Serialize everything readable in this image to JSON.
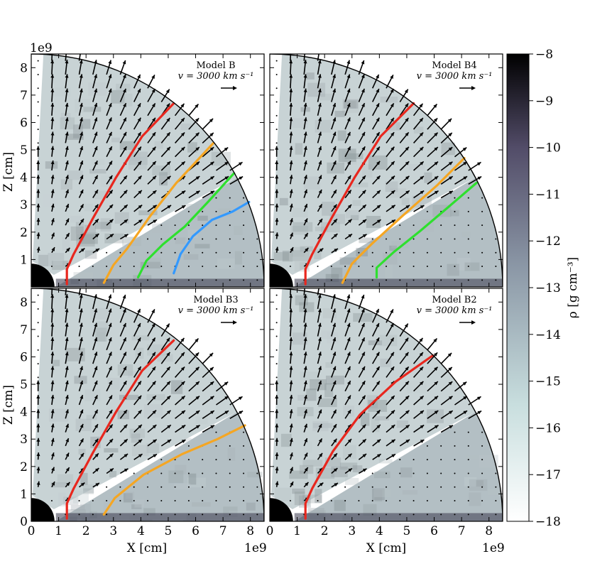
{
  "chart_data": {
    "type": "vector-field-density-map",
    "shared": {
      "x_tick_labels": [
        "0",
        "1",
        "2",
        "3",
        "4",
        "5",
        "6",
        "7",
        "8"
      ],
      "y_tick_labels": [
        "0",
        "1",
        "2",
        "3",
        "4",
        "5",
        "6",
        "7",
        "8"
      ],
      "xlabel": "X [cm]",
      "ylabel": "Z [cm]",
      "offset_label": "1e9",
      "xlim": [
        0,
        8.5
      ],
      "ylim": [
        0,
        8.5
      ],
      "outer_radius": 8.5,
      "star_radius": 0.85,
      "wind_cone_angle_deg": [
        28,
        87
      ],
      "reference_vector": "v = 3000 km s⁻¹"
    },
    "colorbar": {
      "label": "ρ [g cm⁻³]",
      "range": [
        -18,
        -8
      ],
      "tick_labels": [
        "−8",
        "−9",
        "−10",
        "−11",
        "−12",
        "−13",
        "−14",
        "−15",
        "−16",
        "−17",
        "−18"
      ],
      "colors": [
        "#ffffff",
        "#c8dede",
        "#8a96a5",
        "#524c68",
        "#000000"
      ]
    },
    "panels": [
      {
        "title": "Model B",
        "streamlines": [
          {
            "color": "#e8271e",
            "points": [
              [
                1.3,
                0.1
              ],
              [
                1.3,
                0.65
              ],
              [
                1.55,
                1.2
              ],
              [
                2.25,
                2.5
              ],
              [
                3.1,
                4.0
              ],
              [
                4.05,
                5.5
              ],
              [
                5.2,
                6.7
              ]
            ]
          },
          {
            "color": "#f5a623",
            "points": [
              [
                2.65,
                0.15
              ],
              [
                3.0,
                0.8
              ],
              [
                3.5,
                1.4
              ],
              [
                4.35,
                2.6
              ],
              [
                5.3,
                3.8
              ],
              [
                6.65,
                5.25
              ]
            ]
          },
          {
            "color": "#2ee02e",
            "points": [
              [
                3.9,
                0.35
              ],
              [
                4.2,
                0.95
              ],
              [
                4.8,
                1.55
              ],
              [
                5.6,
                2.2
              ],
              [
                6.45,
                3.1
              ],
              [
                7.4,
                4.15
              ]
            ]
          },
          {
            "color": "#3399ff",
            "points": [
              [
                5.2,
                0.5
              ],
              [
                5.45,
                1.2
              ],
              [
                5.9,
                1.85
              ],
              [
                6.6,
                2.45
              ],
              [
                7.35,
                2.75
              ],
              [
                7.95,
                3.1
              ]
            ]
          }
        ]
      },
      {
        "title": "Model B4",
        "streamlines": [
          {
            "color": "#e8271e",
            "points": [
              [
                1.3,
                0.1
              ],
              [
                1.3,
                0.65
              ],
              [
                1.55,
                1.2
              ],
              [
                2.25,
                2.5
              ],
              [
                3.1,
                4.0
              ],
              [
                4.05,
                5.5
              ],
              [
                5.25,
                6.7
              ]
            ]
          },
          {
            "color": "#f5a623",
            "points": [
              [
                2.65,
                0.15
              ],
              [
                3.0,
                0.85
              ],
              [
                3.7,
                1.55
              ],
              [
                4.85,
                2.6
              ],
              [
                6.1,
                3.7
              ],
              [
                7.1,
                4.7
              ]
            ]
          },
          {
            "color": "#2ee02e",
            "points": [
              [
                3.9,
                0.35
              ],
              [
                3.9,
                0.7
              ],
              [
                4.5,
                1.25
              ],
              [
                5.5,
                2.05
              ],
              [
                6.5,
                2.9
              ],
              [
                7.55,
                3.8
              ]
            ]
          }
        ]
      },
      {
        "title": "Model B3",
        "streamlines": [
          {
            "color": "#e8271e",
            "points": [
              [
                1.3,
                0.1
              ],
              [
                1.3,
                0.65
              ],
              [
                1.55,
                1.2
              ],
              [
                2.25,
                2.5
              ],
              [
                3.1,
                4.0
              ],
              [
                4.05,
                5.5
              ],
              [
                5.2,
                6.6
              ]
            ]
          },
          {
            "color": "#f5a623",
            "points": [
              [
                2.65,
                0.25
              ],
              [
                3.05,
                0.85
              ],
              [
                4.1,
                1.7
              ],
              [
                5.5,
                2.45
              ],
              [
                6.8,
                3.0
              ],
              [
                7.8,
                3.5
              ]
            ]
          }
        ]
      },
      {
        "title": "Model B2",
        "streamlines": [
          {
            "color": "#e8271e",
            "points": [
              [
                1.3,
                0.1
              ],
              [
                1.3,
                0.65
              ],
              [
                1.55,
                1.2
              ],
              [
                2.3,
                2.55
              ],
              [
                3.3,
                3.9
              ],
              [
                4.6,
                5.1
              ],
              [
                5.95,
                6.05
              ]
            ]
          }
        ]
      }
    ]
  }
}
